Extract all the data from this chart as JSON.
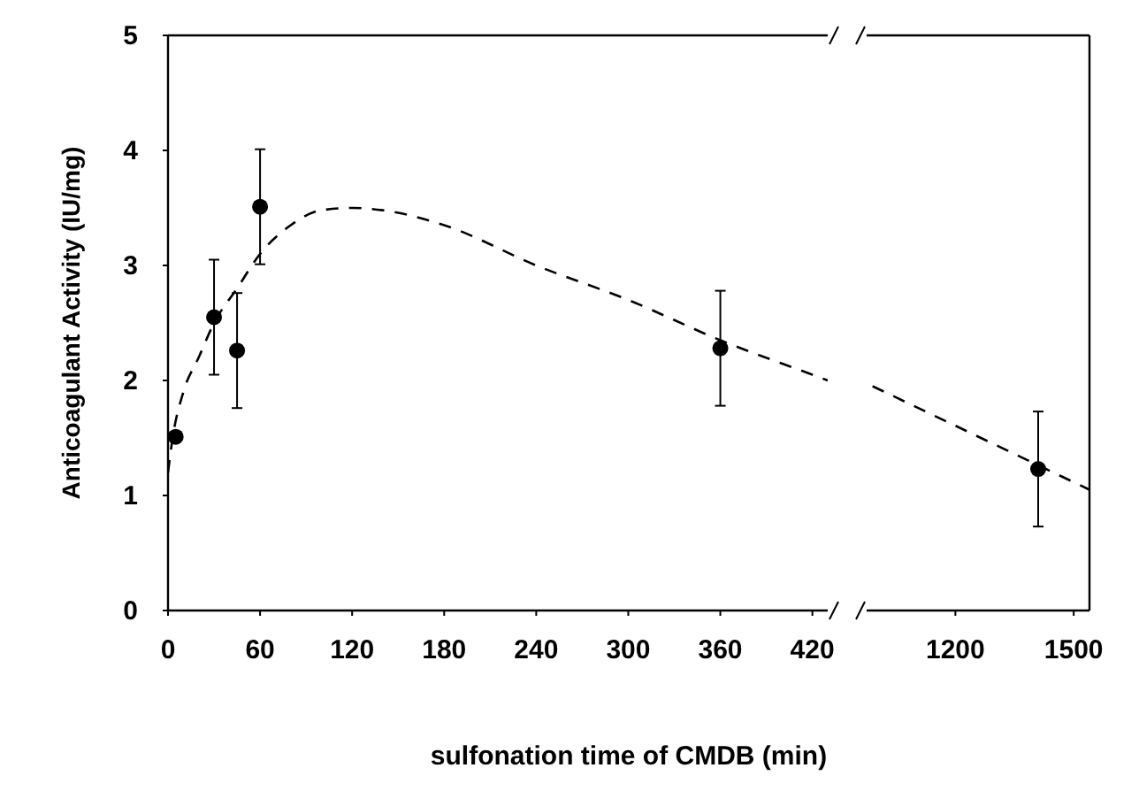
{
  "chart_data": [
    {
      "type": "scatter",
      "xlabel": "sulfonation time of CMDB (min)",
      "ylabel": "Anticoagulant Activity (IU/mg)",
      "xlim": [
        0,
        430
      ],
      "xticks": [
        0,
        60,
        120,
        180,
        240,
        300,
        360,
        420
      ],
      "ylim": [
        0,
        5
      ],
      "yticks": [
        0,
        1,
        2,
        3,
        4,
        5
      ],
      "series": [
        {
          "type": "scatter",
          "color": "#000000",
          "marker": "circle",
          "x": [
            5,
            30,
            45,
            60,
            360
          ],
          "values": [
            1.51,
            2.55,
            2.26,
            3.51,
            2.28
          ],
          "errors": [
            null,
            0.5,
            0.5,
            0.5,
            0.5
          ]
        },
        {
          "type": "line",
          "color": "#000000",
          "line_style": "dashed",
          "marker": "none",
          "x": [
            0,
            3,
            10,
            20,
            30,
            45,
            60,
            80,
            100,
            120,
            140,
            180,
            240,
            300,
            360,
            420,
            430
          ],
          "values": [
            1.2,
            1.5,
            1.9,
            2.2,
            2.5,
            2.8,
            3.1,
            3.35,
            3.48,
            3.5,
            3.48,
            3.35,
            3.0,
            2.7,
            2.35,
            2.05,
            2.0
          ]
        }
      ]
    },
    {
      "type": "scatter",
      "xlim": [
        975,
        1540
      ],
      "xticks": [
        1200,
        1500
      ],
      "ylim": [
        0,
        5
      ],
      "tick_labels": "x",
      "series": [
        {
          "type": "scatter",
          "color": "#000000",
          "marker": "circle",
          "x": [
            1410
          ],
          "values": [
            1.23
          ],
          "errors": [
            0.5
          ]
        },
        {
          "type": "line",
          "color": "#000000",
          "line_style": "dashed",
          "marker": "none",
          "x": [
            990,
            1540
          ],
          "values": [
            1.95,
            1.05
          ]
        }
      ]
    }
  ]
}
